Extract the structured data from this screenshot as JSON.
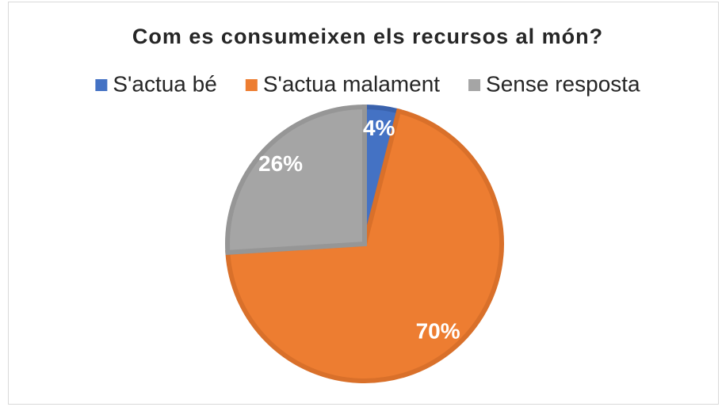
{
  "chart_data": {
    "type": "pie",
    "title": "Com es consumeixen els recursos al món?",
    "categories": [
      "S'actua bé",
      "S'actua malament",
      "Sense resposta"
    ],
    "values": [
      4,
      70,
      26
    ],
    "value_labels": [
      "4%",
      "70%",
      "26%"
    ],
    "colors": [
      "#4472c4",
      "#ed7d31",
      "#a5a5a5"
    ],
    "edge_colors": [
      "#3a62ad",
      "#d9702a",
      "#969696"
    ],
    "legend": "top"
  }
}
